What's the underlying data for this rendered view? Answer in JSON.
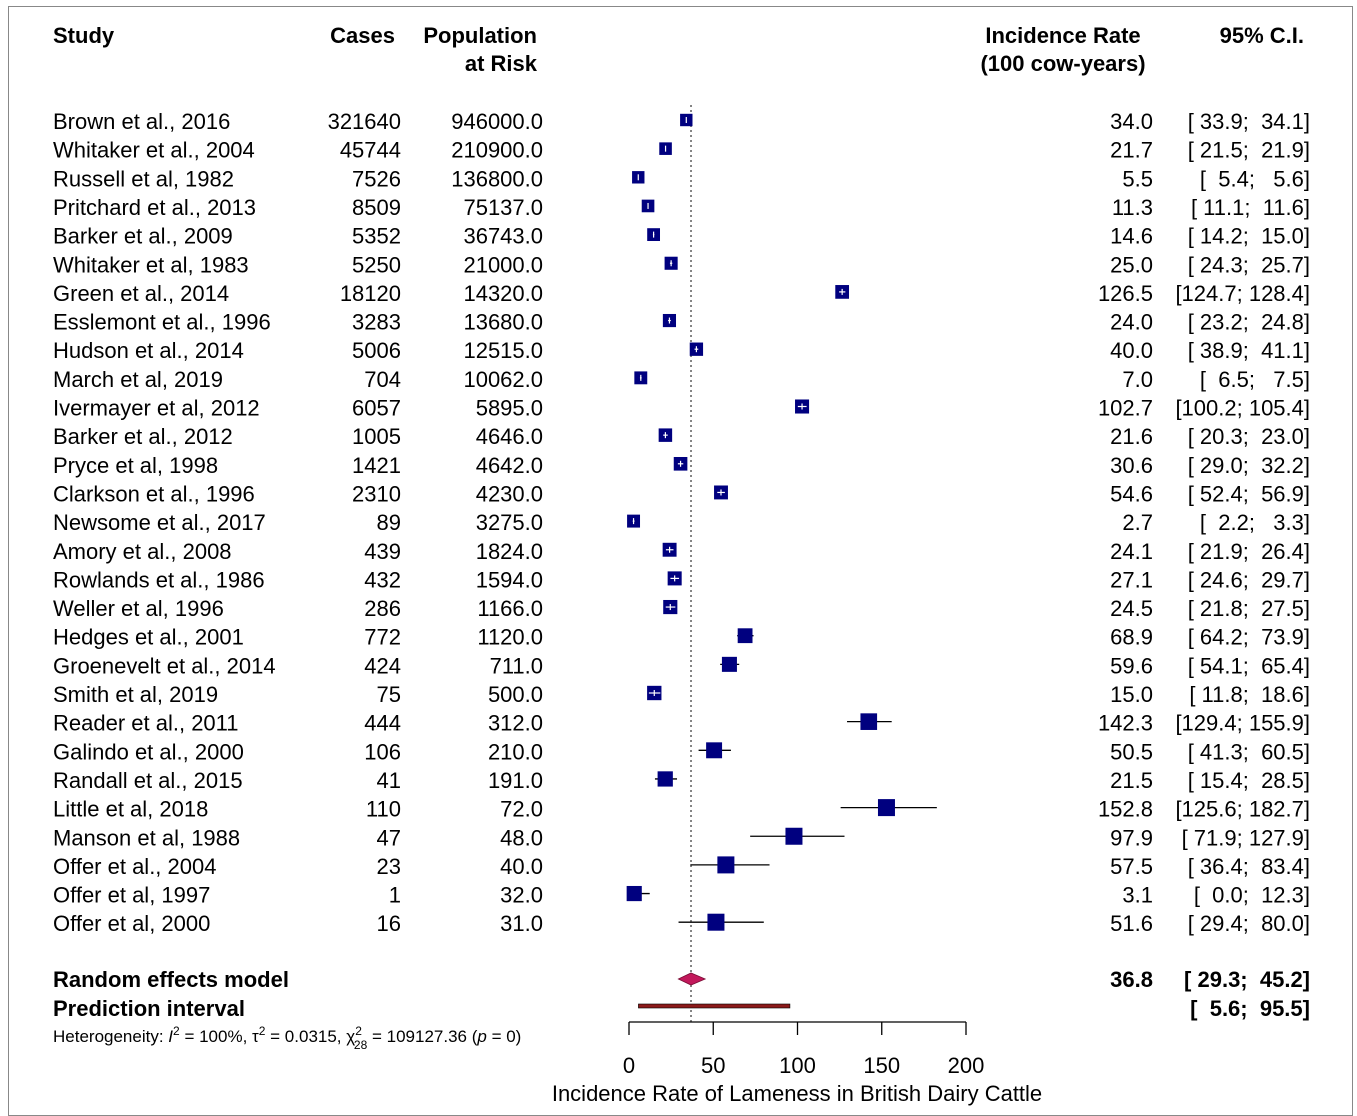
{
  "chart_data": {
    "type": "forest",
    "headers": {
      "study": "Study",
      "cases": "Cases",
      "population_l1": "Population",
      "population_l2": "at Risk",
      "rate_l1": "Incidence Rate",
      "rate_l2": "(100 cow-years)",
      "ci": "95% C.I."
    },
    "studies": [
      {
        "study": "Brown et al., 2016",
        "cases": "321640",
        "population": "946000.0",
        "rate": 34.0,
        "lo": 33.9,
        "hi": 34.1,
        "rate_text": "34.0",
        "ci_text": "[ 33.9;  34.1]"
      },
      {
        "study": "Whitaker et al., 2004",
        "cases": "45744",
        "population": "210900.0",
        "rate": 21.7,
        "lo": 21.5,
        "hi": 21.9,
        "rate_text": "21.7",
        "ci_text": "[ 21.5;  21.9]"
      },
      {
        "study": "Russell et al, 1982",
        "cases": "7526",
        "population": "136800.0",
        "rate": 5.5,
        "lo": 5.4,
        "hi": 5.6,
        "rate_text": "5.5",
        "ci_text": "[  5.4;   5.6]"
      },
      {
        "study": "Pritchard et al., 2013",
        "cases": "8509",
        "population": "75137.0",
        "rate": 11.3,
        "lo": 11.1,
        "hi": 11.6,
        "rate_text": "11.3",
        "ci_text": "[ 11.1;  11.6]"
      },
      {
        "study": "Barker et al., 2009",
        "cases": "5352",
        "population": "36743.0",
        "rate": 14.6,
        "lo": 14.2,
        "hi": 15.0,
        "rate_text": "14.6",
        "ci_text": "[ 14.2;  15.0]"
      },
      {
        "study": "Whitaker et al, 1983",
        "cases": "5250",
        "population": "21000.0",
        "rate": 25.0,
        "lo": 24.3,
        "hi": 25.7,
        "rate_text": "25.0",
        "ci_text": "[ 24.3;  25.7]"
      },
      {
        "study": "Green et al., 2014",
        "cases": "18120",
        "population": "14320.0",
        "rate": 126.5,
        "lo": 124.7,
        "hi": 128.4,
        "rate_text": "126.5",
        "ci_text": "[124.7; 128.4]"
      },
      {
        "study": "Esslemont et al., 1996",
        "cases": "3283",
        "population": "13680.0",
        "rate": 24.0,
        "lo": 23.2,
        "hi": 24.8,
        "rate_text": "24.0",
        "ci_text": "[ 23.2;  24.8]"
      },
      {
        "study": "Hudson et al., 2014",
        "cases": "5006",
        "population": "12515.0",
        "rate": 40.0,
        "lo": 38.9,
        "hi": 41.1,
        "rate_text": "40.0",
        "ci_text": "[ 38.9;  41.1]"
      },
      {
        "study": "March et al, 2019",
        "cases": "704",
        "population": "10062.0",
        "rate": 7.0,
        "lo": 6.5,
        "hi": 7.5,
        "rate_text": "7.0",
        "ci_text": "[  6.5;   7.5]"
      },
      {
        "study": "Ivermayer et al, 2012",
        "cases": "6057",
        "population": "5895.0",
        "rate": 102.7,
        "lo": 100.2,
        "hi": 105.4,
        "rate_text": "102.7",
        "ci_text": "[100.2; 105.4]"
      },
      {
        "study": "Barker et al., 2012",
        "cases": "1005",
        "population": "4646.0",
        "rate": 21.6,
        "lo": 20.3,
        "hi": 23.0,
        "rate_text": "21.6",
        "ci_text": "[ 20.3;  23.0]"
      },
      {
        "study": "Pryce et al, 1998",
        "cases": "1421",
        "population": "4642.0",
        "rate": 30.6,
        "lo": 29.0,
        "hi": 32.2,
        "rate_text": "30.6",
        "ci_text": "[ 29.0;  32.2]"
      },
      {
        "study": "Clarkson et al., 1996",
        "cases": "2310",
        "population": "4230.0",
        "rate": 54.6,
        "lo": 52.4,
        "hi": 56.9,
        "rate_text": "54.6",
        "ci_text": "[ 52.4;  56.9]"
      },
      {
        "study": "Newsome et al., 2017",
        "cases": "89",
        "population": "3275.0",
        "rate": 2.7,
        "lo": 2.2,
        "hi": 3.3,
        "rate_text": "2.7",
        "ci_text": "[  2.2;   3.3]"
      },
      {
        "study": "Amory et al., 2008",
        "cases": "439",
        "population": "1824.0",
        "rate": 24.1,
        "lo": 21.9,
        "hi": 26.4,
        "rate_text": "24.1",
        "ci_text": "[ 21.9;  26.4]"
      },
      {
        "study": "Rowlands et al., 1986",
        "cases": "432",
        "population": "1594.0",
        "rate": 27.1,
        "lo": 24.6,
        "hi": 29.7,
        "rate_text": "27.1",
        "ci_text": "[ 24.6;  29.7]"
      },
      {
        "study": "Weller et al, 1996",
        "cases": "286",
        "population": "1166.0",
        "rate": 24.5,
        "lo": 21.8,
        "hi": 27.5,
        "rate_text": "24.5",
        "ci_text": "[ 21.8;  27.5]"
      },
      {
        "study": "Hedges et al., 2001",
        "cases": "772",
        "population": "1120.0",
        "rate": 68.9,
        "lo": 64.2,
        "hi": 73.9,
        "rate_text": "68.9",
        "ci_text": "[ 64.2;  73.9]"
      },
      {
        "study": "Groenevelt et al., 2014",
        "cases": "424",
        "population": "711.0",
        "rate": 59.6,
        "lo": 54.1,
        "hi": 65.4,
        "rate_text": "59.6",
        "ci_text": "[ 54.1;  65.4]"
      },
      {
        "study": "Smith et al, 2019",
        "cases": "75",
        "population": "500.0",
        "rate": 15.0,
        "lo": 11.8,
        "hi": 18.6,
        "rate_text": "15.0",
        "ci_text": "[ 11.8;  18.6]"
      },
      {
        "study": "Reader et al., 2011",
        "cases": "444",
        "population": "312.0",
        "rate": 142.3,
        "lo": 129.4,
        "hi": 155.9,
        "rate_text": "142.3",
        "ci_text": "[129.4; 155.9]"
      },
      {
        "study": "Galindo et al., 2000",
        "cases": "106",
        "population": "210.0",
        "rate": 50.5,
        "lo": 41.3,
        "hi": 60.5,
        "rate_text": "50.5",
        "ci_text": "[ 41.3;  60.5]"
      },
      {
        "study": "Randall et al., 2015",
        "cases": "41",
        "population": "191.0",
        "rate": 21.5,
        "lo": 15.4,
        "hi": 28.5,
        "rate_text": "21.5",
        "ci_text": "[ 15.4;  28.5]"
      },
      {
        "study": "Little et al, 2018",
        "cases": "110",
        "population": "72.0",
        "rate": 152.8,
        "lo": 125.6,
        "hi": 182.7,
        "rate_text": "152.8",
        "ci_text": "[125.6; 182.7]"
      },
      {
        "study": "Manson et al, 1988",
        "cases": "47",
        "population": "48.0",
        "rate": 97.9,
        "lo": 71.9,
        "hi": 127.9,
        "rate_text": "97.9",
        "ci_text": "[ 71.9; 127.9]"
      },
      {
        "study": "Offer et al., 2004",
        "cases": "23",
        "population": "40.0",
        "rate": 57.5,
        "lo": 36.4,
        "hi": 83.4,
        "rate_text": "57.5",
        "ci_text": "[ 36.4;  83.4]"
      },
      {
        "study": "Offer et al, 1997",
        "cases": "1",
        "population": "32.0",
        "rate": 3.1,
        "lo": 0.0,
        "hi": 12.3,
        "rate_text": "3.1",
        "ci_text": "[  0.0;  12.3]"
      },
      {
        "study": "Offer et al, 2000",
        "cases": "16",
        "population": "31.0",
        "rate": 51.6,
        "lo": 29.4,
        "hi": 80.0,
        "rate_text": "51.6",
        "ci_text": "[ 29.4;  80.0]"
      }
    ],
    "random_effects": {
      "label": "Random effects model",
      "rate": 36.8,
      "lo": 29.3,
      "hi": 45.2,
      "rate_text": "36.8",
      "ci_text": "[ 29.3;  45.2]"
    },
    "prediction_interval": {
      "label": "Prediction interval",
      "lo": 5.6,
      "hi": 95.5,
      "ci_text": "[  5.6;  95.5]"
    },
    "heterogeneity": {
      "prefix": "Heterogeneity: ",
      "i2_label": "I",
      "i2_value": " = 100%, ",
      "tau2_label": "τ",
      "tau2_value": " = 0.0315, ",
      "chi2_label": "χ",
      "chi2_df": "28",
      "chi2_value": " = 109127.36 (",
      "p_label": "p",
      "p_value": " = 0)"
    },
    "x_axis": {
      "ticks": [
        0,
        50,
        100,
        150,
        200
      ],
      "xlim": [
        0,
        200
      ],
      "label": "Incidence Rate of Lameness in British Dairy Cattle"
    },
    "colors": {
      "study_box": "#00007f",
      "summary": "#c2185b",
      "prediction": "#8b1a1a",
      "line": "#000000"
    }
  }
}
